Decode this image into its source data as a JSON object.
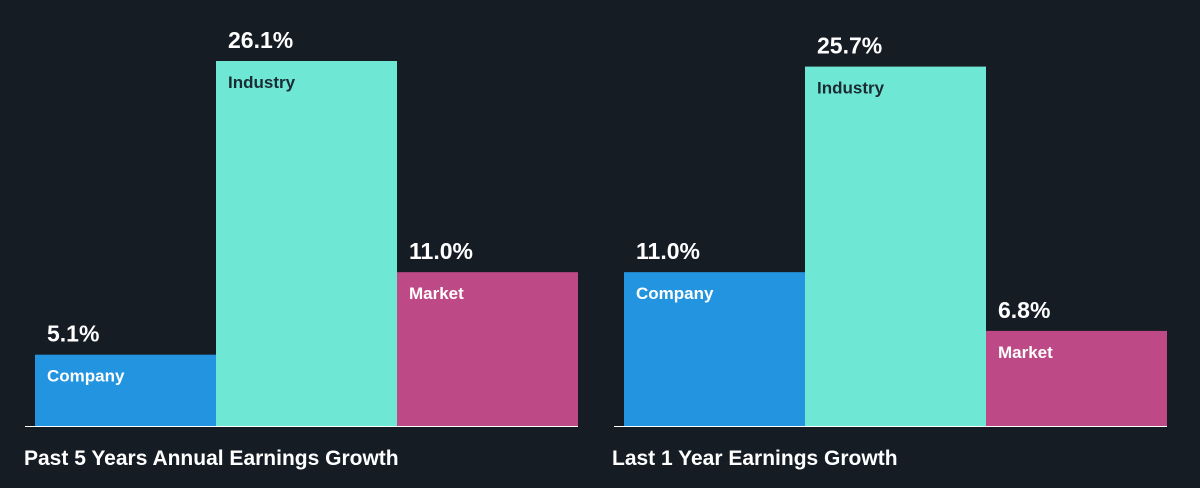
{
  "colors": {
    "background": "#161c24",
    "company": "#2394e0",
    "industry": "#6ee8d5",
    "market": "#bd4a86",
    "axis": "#ffffff",
    "label_on_dark": "#ffffff",
    "label_on_light": "#1b2a33"
  },
  "chart_data": [
    {
      "type": "bar",
      "title": "Past 5 Years Annual Earnings Growth",
      "categories": [
        "Company",
        "Industry",
        "Market"
      ],
      "values": [
        5.1,
        26.1,
        11.0
      ],
      "value_labels": [
        "5.1%",
        "26.1%",
        "11.0%"
      ],
      "unit": "%",
      "ylim": [
        0,
        26.1
      ],
      "grid": false,
      "legend": "none"
    },
    {
      "type": "bar",
      "title": "Last 1 Year Earnings Growth",
      "categories": [
        "Company",
        "Industry",
        "Market"
      ],
      "values": [
        11.0,
        25.7,
        6.8
      ],
      "value_labels": [
        "11.0%",
        "25.7%",
        "6.8%"
      ],
      "unit": "%",
      "ylim": [
        0,
        26.1
      ],
      "grid": false,
      "legend": "none"
    }
  ]
}
